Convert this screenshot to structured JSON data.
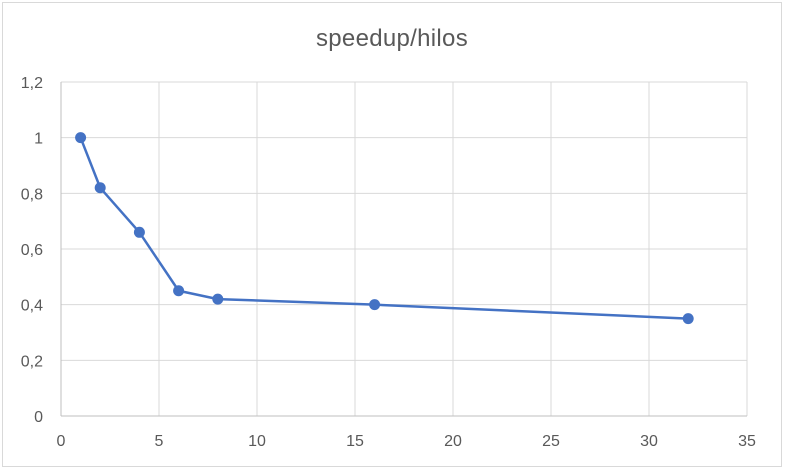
{
  "chart_data": {
    "type": "line",
    "title": "speedup/hilos",
    "xlabel": "",
    "ylabel": "",
    "xlim": [
      0,
      35
    ],
    "ylim": [
      0,
      1.2
    ],
    "x_ticks": [
      0,
      5,
      10,
      15,
      20,
      25,
      30,
      35
    ],
    "y_ticks": [
      0,
      0.2,
      0.4,
      0.6,
      0.8,
      1,
      1.2
    ],
    "x_tick_labels": [
      "0",
      "5",
      "10",
      "15",
      "20",
      "25",
      "30",
      "35"
    ],
    "y_tick_labels": [
      "0",
      "0,2",
      "0,4",
      "0,6",
      "0,8",
      "1",
      "1,2"
    ],
    "grid": true,
    "legend": "none",
    "series": [
      {
        "color": "#4472c4",
        "x": [
          1,
          2,
          4,
          6,
          8,
          16,
          32
        ],
        "y": [
          1,
          0.82,
          0.66,
          0.45,
          0.42,
          0.4,
          0.35
        ]
      }
    ]
  }
}
